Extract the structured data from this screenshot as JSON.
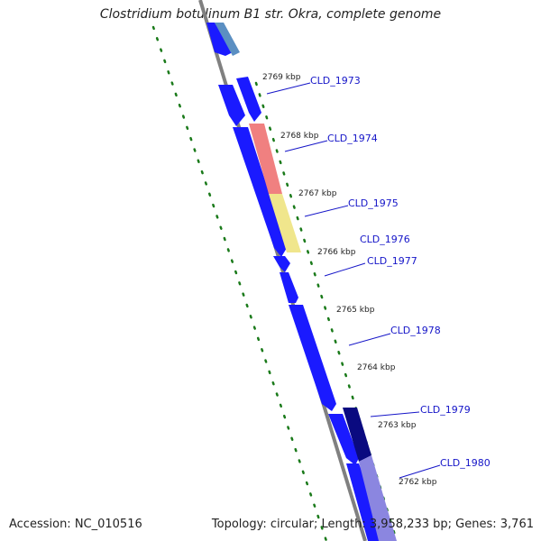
{
  "title": "Clostridium botulinum B1 str. Okra, complete genome",
  "footer": {
    "accession": "Accession: NC_010516",
    "summary": "Topology: circular; Length: 3,958,233 bp; Genes: 3,761"
  },
  "ticks": [
    "2769 kbp",
    "2768 kbp",
    "2767 kbp",
    "2766 kbp",
    "2765 kbp",
    "2764 kbp",
    "2763 kbp",
    "2762 kbp"
  ],
  "genes": [
    "CLD_1973",
    "CLD_1974",
    "CLD_1975",
    "CLD_1976",
    "CLD_1977",
    "CLD_1978",
    "CLD_1979",
    "CLD_1980"
  ],
  "colors": {
    "backbone": "#808080",
    "cds_forward": "#1a1aff",
    "cds_reverse": "#1a1aff",
    "highlight_red": "#f08080",
    "highlight_yellow": "#f0e68c",
    "highlight_navy": "#0a0a80",
    "highlight_lavender": "#8b86e0",
    "highlight_steel": "#5b8fc2",
    "gc_dots": "#1a7a1a",
    "label_line": "#1515c8"
  }
}
